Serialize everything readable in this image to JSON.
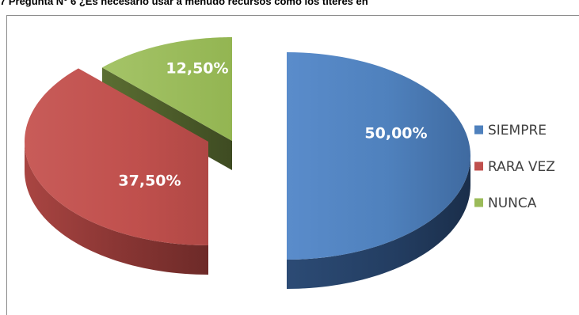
{
  "title": "7 Pregunta N° 6 ¿Es necesario usar a menudo recursos como los títeres en",
  "chart_data": {
    "type": "pie",
    "categories": [
      "SIEMPRE",
      "RARA VEZ",
      "NUNCA"
    ],
    "values": [
      50.0,
      37.5,
      12.5
    ],
    "data_labels": [
      "50,00%",
      "37,50%",
      "12,50%"
    ],
    "colors": [
      "#4f81bd",
      "#c0504d",
      "#9bbb59"
    ],
    "exploded": true,
    "three_d": true,
    "legend_position": "right"
  }
}
